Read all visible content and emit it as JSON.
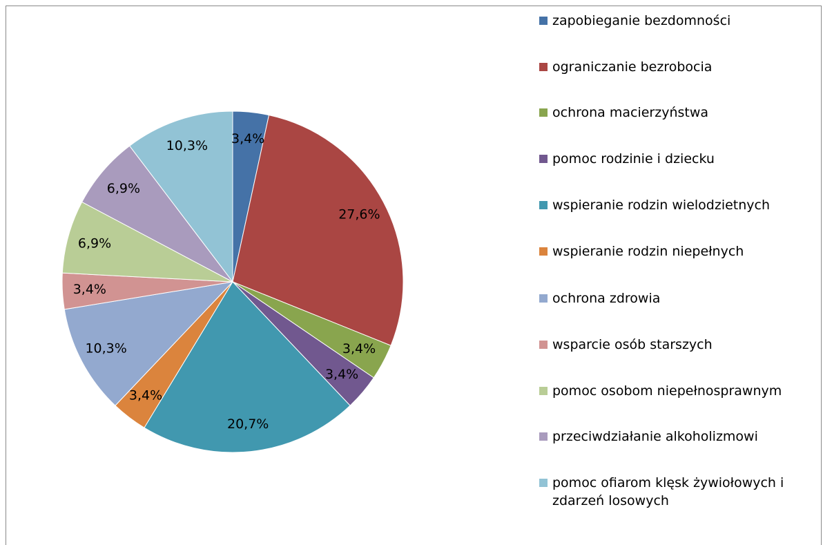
{
  "chart_data": {
    "type": "pie",
    "categories": [
      "zapobieganie bezdomności",
      "ograniczanie bezrobocia",
      "ochrona macierzyństwa",
      "pomoc rodzinie i dziecku",
      "wspieranie rodzin wielodzietnych",
      "wspieranie rodzin niepełnych",
      "ochrona zdrowia",
      "wsparcie osób starszych",
      "pomoc osobom niepełnosprawnym",
      "przeciwdziałanie alkoholizmowi",
      "pomoc ofiarom klęsk żywiołowych i zdarzeń losowych"
    ],
    "values": [
      3.4,
      27.6,
      3.4,
      3.4,
      20.7,
      3.4,
      10.3,
      3.4,
      6.9,
      6.9,
      10.3
    ],
    "value_labels": [
      "3,4%",
      "27,6%",
      "3,4%",
      "3,4%",
      "20,7%",
      "3,4%",
      "10,3%",
      "3,4%",
      "6,9%",
      "6,9%",
      "10,3%"
    ],
    "colors": [
      "#4572A7",
      "#AA4643",
      "#89A54E",
      "#71588F",
      "#4198AF",
      "#DB843D",
      "#93A9CF",
      "#D19392",
      "#B9CD96",
      "#A99BBD",
      "#92C3D5"
    ],
    "legend": "right"
  }
}
